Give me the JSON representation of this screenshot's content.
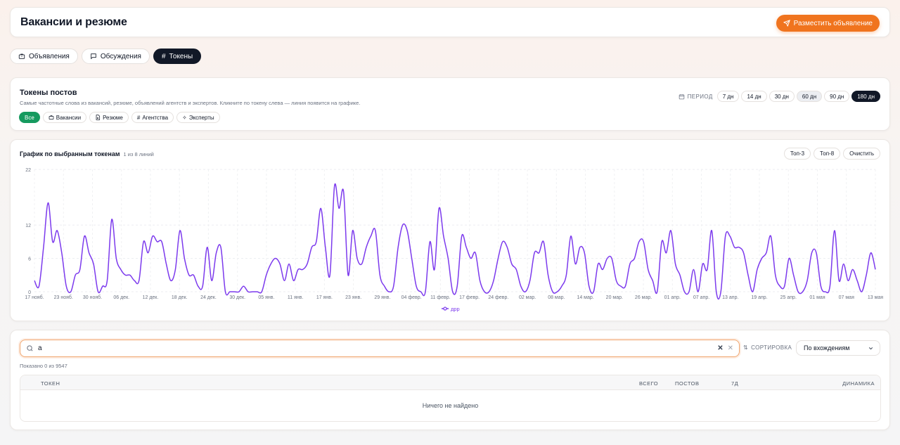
{
  "header": {
    "title": "Вакансии и резюме",
    "post_button": "Разместить объявление"
  },
  "tabs": [
    {
      "label": "Объявления",
      "icon": "briefcase-icon",
      "active": false
    },
    {
      "label": "Обсуждения",
      "icon": "chat-icon",
      "active": false
    },
    {
      "label": "Токены",
      "icon": "hash-icon",
      "active": true
    }
  ],
  "tokens_section": {
    "title": "Токены постов",
    "subtitle": "Самые частотные слова из вакансий, резюме, объявлений агентств и экспертов. Кликните по токену слева — линия появится на графике.",
    "filters": [
      {
        "label": "Все",
        "icon": "",
        "active": true
      },
      {
        "label": "Вакансии",
        "icon": "briefcase-icon"
      },
      {
        "label": "Резюме",
        "icon": "document-icon"
      },
      {
        "label": "Агентства",
        "icon": "hash-icon"
      },
      {
        "label": "Эксперты",
        "icon": "sparkle-icon"
      }
    ],
    "period_label": "ПЕРИОД",
    "periods": [
      {
        "label": "7 дн"
      },
      {
        "label": "14 дн"
      },
      {
        "label": "30 дн"
      },
      {
        "label": "60 дн",
        "soft": true
      },
      {
        "label": "90 дн"
      },
      {
        "label": "180 дн",
        "active": true
      }
    ]
  },
  "chart_section": {
    "title": "График по выбранным токенам",
    "count": "1 из 8 линий",
    "buttons": {
      "top3": "Топ-3",
      "top8": "Топ-8",
      "clear": "Очистить"
    }
  },
  "chart_data": {
    "type": "line",
    "series": [
      {
        "name": "дрр",
        "color": "#7c3aed",
        "values": [
          2,
          1,
          8,
          16,
          9,
          11,
          7,
          1,
          0,
          3,
          4,
          10,
          7,
          5,
          0,
          1,
          2,
          13,
          6,
          4,
          3,
          3,
          2,
          2,
          9,
          7,
          10,
          9,
          9,
          5,
          2,
          4,
          11,
          6,
          3,
          3,
          1,
          1,
          8,
          2,
          7,
          8,
          0,
          0,
          0,
          0,
          1,
          0,
          0,
          0,
          0,
          3,
          5,
          6,
          5,
          2,
          5,
          2,
          4,
          4,
          5,
          8,
          9,
          15,
          8,
          3,
          19,
          15,
          18,
          3,
          11,
          6,
          5,
          8,
          10,
          11,
          3,
          1,
          0,
          1,
          8,
          12,
          11,
          6,
          1,
          0,
          0,
          9,
          4,
          15,
          10,
          6,
          0,
          1,
          10,
          8,
          6,
          7,
          2,
          0,
          0,
          2,
          6,
          9,
          8,
          5,
          4,
          1,
          0,
          2,
          7,
          7,
          9,
          3,
          0,
          0,
          1,
          3,
          10,
          5,
          8,
          7,
          1,
          0,
          5,
          4,
          6,
          6,
          2,
          1,
          1,
          5,
          6,
          9,
          9,
          4,
          2,
          0,
          9,
          7,
          11,
          5,
          3,
          0,
          0,
          4,
          0,
          5,
          4,
          11,
          0,
          0,
          10,
          10,
          8,
          8,
          7,
          3,
          0,
          4,
          6,
          7,
          10,
          3,
          1,
          1,
          6,
          3,
          0,
          0,
          2,
          7,
          7,
          1,
          0,
          1,
          11,
          2,
          5,
          2,
          4,
          2,
          0,
          3,
          7,
          4
        ]
      }
    ],
    "x_ticks": [
      "17 нояб.",
      "23 нояб.",
      "30 нояб.",
      "06 дек.",
      "12 дек.",
      "18 дек.",
      "24 дек.",
      "30 дек.",
      "05 янв.",
      "11 янв.",
      "17 янв.",
      "23 янв.",
      "29 янв.",
      "04 февр.",
      "11 февр.",
      "17 февр.",
      "24 февр.",
      "02 мар.",
      "08 мар.",
      "14 мар.",
      "20 мар.",
      "26 мар.",
      "01 апр.",
      "07 апр.",
      "13 апр.",
      "19 апр.",
      "25 апр.",
      "01 мая",
      "07 мая",
      "13 мая"
    ],
    "y_ticks": [
      0,
      6,
      12,
      22
    ],
    "ylim": [
      0,
      22
    ],
    "grid": true,
    "legend_position": "bottom-center"
  },
  "search": {
    "value": "a",
    "clear_icon": "x-icon",
    "sort_label": "СОРТИРОВКА",
    "sort_value": "По вхождениям",
    "shown_text": "Показано 0 из 9547"
  },
  "table": {
    "columns": {
      "token": "ТОКЕН",
      "total": "ВСЕГО",
      "posts": "ПОСТОВ",
      "d7": "7Д",
      "dynamics": "ДИНАМИКА"
    },
    "empty_text": "Ничего не найдено"
  }
}
